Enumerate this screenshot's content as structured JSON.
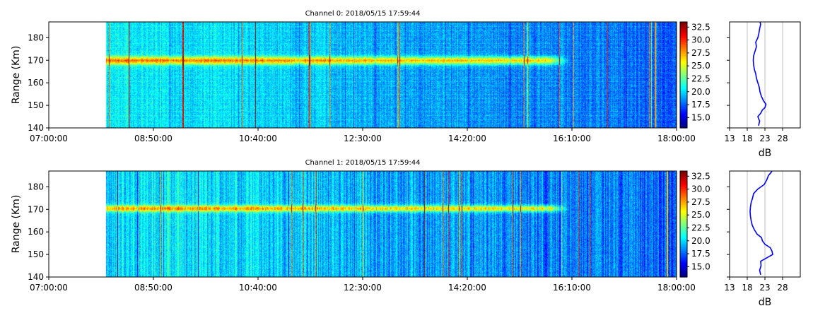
{
  "chart_data": [
    {
      "type": "heatmap",
      "title": "Channel 0: 2018/05/15 17:59:44",
      "ylabel": "Range (Km)",
      "xlabel": "",
      "x_ticks": [
        "07:00:00",
        "08:50:00",
        "10:40:00",
        "12:30:00",
        "14:20:00",
        "16:10:00",
        "18:00:00"
      ],
      "x_range": [
        "07:00:00",
        "18:00:00"
      ],
      "data_start": "08:00:00",
      "y_ticks": [
        140,
        150,
        160,
        170,
        180
      ],
      "ylim": [
        140,
        187
      ],
      "band_center_km": 170,
      "band_fade_time": "15:45:00",
      "colorbar": {
        "ticks": [
          15.0,
          17.5,
          20.0,
          22.5,
          25.0,
          27.5,
          30.0,
          32.5
        ],
        "tick_labels": [
          "15.0",
          "17.5",
          "20.0",
          "22.5",
          "25.0",
          "27.5",
          "30.0",
          "32.5"
        ],
        "range": [
          13,
          33.5
        ],
        "colormap": "jet"
      },
      "profile": {
        "type": "line",
        "xlabel": "dB",
        "x_ticks": [
          13,
          18,
          23,
          28
        ],
        "xlim": [
          13,
          33
        ],
        "color": "#0000ff",
        "grid": "vertical",
        "points": [
          {
            "range": 141,
            "db": 21.2
          },
          {
            "range": 143,
            "db": 21.5
          },
          {
            "range": 145,
            "db": 21.0
          },
          {
            "range": 146.5,
            "db": 21.8
          },
          {
            "range": 148,
            "db": 22.3
          },
          {
            "range": 149,
            "db": 23.0
          },
          {
            "range": 150.5,
            "db": 23.3
          },
          {
            "range": 152,
            "db": 22.6
          },
          {
            "range": 154,
            "db": 22.0
          },
          {
            "range": 156,
            "db": 21.6
          },
          {
            "range": 158,
            "db": 21.4
          },
          {
            "range": 160,
            "db": 21.0
          },
          {
            "range": 162,
            "db": 20.6
          },
          {
            "range": 164,
            "db": 20.4
          },
          {
            "range": 166,
            "db": 20.0
          },
          {
            "range": 168,
            "db": 19.8
          },
          {
            "range": 170,
            "db": 19.7
          },
          {
            "range": 172,
            "db": 19.8
          },
          {
            "range": 174,
            "db": 20.2
          },
          {
            "range": 176,
            "db": 20.6
          },
          {
            "range": 178,
            "db": 20.4
          },
          {
            "range": 180,
            "db": 21.0
          },
          {
            "range": 182,
            "db": 21.3
          },
          {
            "range": 184,
            "db": 21.5
          },
          {
            "range": 186,
            "db": 21.8
          },
          {
            "range": 187,
            "db": 21.6
          }
        ]
      }
    },
    {
      "type": "heatmap",
      "title": "Channel 1: 2018/05/15 17:59:44",
      "ylabel": "Range (Km)",
      "xlabel": "",
      "x_ticks": [
        "07:00:00",
        "08:50:00",
        "10:40:00",
        "12:30:00",
        "14:20:00",
        "16:10:00",
        "18:00:00"
      ],
      "x_range": [
        "07:00:00",
        "18:00:00"
      ],
      "data_start": "08:00:00",
      "y_ticks": [
        140,
        150,
        160,
        170,
        180
      ],
      "ylim": [
        140,
        187
      ],
      "band_center_km": 170.5,
      "band_fade_time": "15:45:00",
      "colorbar": {
        "ticks": [
          15.0,
          17.5,
          20.0,
          22.5,
          25.0,
          27.5,
          30.0,
          32.5
        ],
        "tick_labels": [
          "15.0",
          "17.5",
          "20.0",
          "22.5",
          "25.0",
          "27.5",
          "30.0",
          "32.5"
        ],
        "range": [
          13,
          33.5
        ],
        "colormap": "jet"
      },
      "profile": {
        "type": "line",
        "xlabel": "dB",
        "x_ticks": [
          13,
          18,
          23,
          28
        ],
        "xlim": [
          13,
          33
        ],
        "color": "#0000ff",
        "grid": "vertical",
        "points": [
          {
            "range": 141,
            "db": 21.8
          },
          {
            "range": 143,
            "db": 21.5
          },
          {
            "range": 145,
            "db": 21.9
          },
          {
            "range": 147,
            "db": 21.8
          },
          {
            "range": 148.5,
            "db": 23.5
          },
          {
            "range": 150,
            "db": 25.2
          },
          {
            "range": 151.5,
            "db": 25.0
          },
          {
            "range": 153,
            "db": 24.5
          },
          {
            "range": 154.5,
            "db": 23.0
          },
          {
            "range": 156,
            "db": 22.3
          },
          {
            "range": 157.5,
            "db": 22.0
          },
          {
            "range": 159,
            "db": 20.8
          },
          {
            "range": 161,
            "db": 20.0
          },
          {
            "range": 163,
            "db": 19.4
          },
          {
            "range": 165,
            "db": 19.1
          },
          {
            "range": 167,
            "db": 18.9
          },
          {
            "range": 169,
            "db": 18.8
          },
          {
            "range": 171,
            "db": 18.9
          },
          {
            "range": 173,
            "db": 19.1
          },
          {
            "range": 175,
            "db": 19.5
          },
          {
            "range": 177,
            "db": 19.8
          },
          {
            "range": 179,
            "db": 21.0
          },
          {
            "range": 181,
            "db": 22.8
          },
          {
            "range": 183,
            "db": 23.5
          },
          {
            "range": 185,
            "db": 24.0
          },
          {
            "range": 186.5,
            "db": 24.8
          },
          {
            "range": 187,
            "db": 25.0
          }
        ]
      }
    }
  ]
}
